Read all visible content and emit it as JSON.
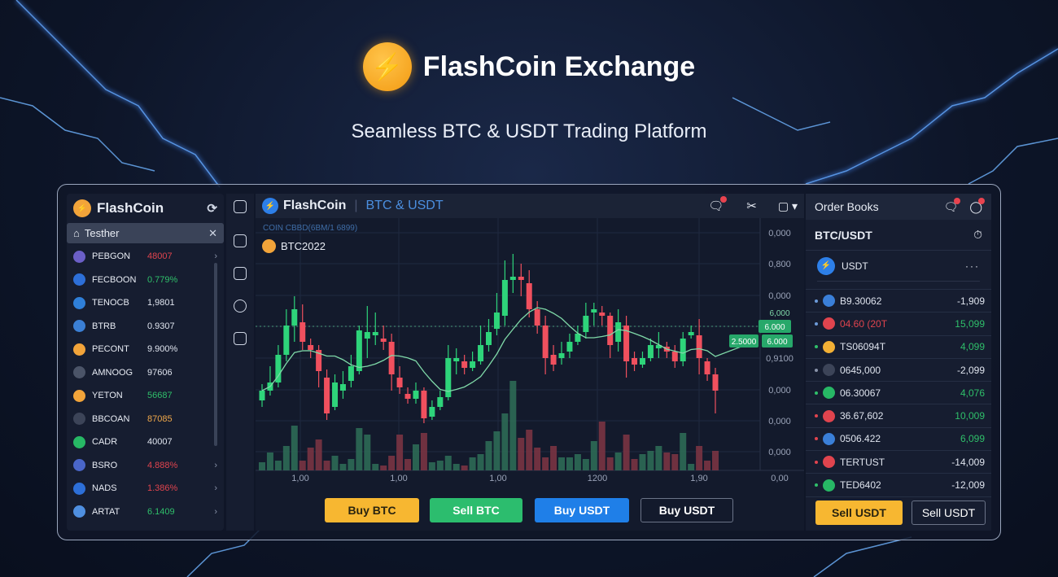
{
  "hero": {
    "brand": "FlashCoin Exchange",
    "subtitle": "Seamless BTC & USDT Trading Platform",
    "logo_icon": "lightning-bolt-icon"
  },
  "sidebar": {
    "title": "FlashCoin",
    "search_value": "Testher",
    "items": [
      {
        "name": "PEBGON",
        "value": "48007",
        "color": "#e0444e",
        "coin": "#6b5fc7"
      },
      {
        "name": "FECBOON",
        "value": "0.779%",
        "color": "#2fbf6a",
        "coin": "#2d6fd8"
      },
      {
        "name": "TENOCB",
        "value": "1,9801",
        "color": "#dfe4ee",
        "coin": "#2f7fd8"
      },
      {
        "name": "BTRB",
        "value": "0.9307",
        "color": "#dfe4ee",
        "coin": "#3b7fd4"
      },
      {
        "name": "PECONT",
        "value": "9.900%",
        "color": "#dfe4ee",
        "coin": "#f2a43a"
      },
      {
        "name": "AMNOOG",
        "value": "97606",
        "color": "#dfe4ee",
        "coin": "#4b5468"
      },
      {
        "name": "YETON",
        "value": "56687",
        "color": "#2fbf6a",
        "coin": "#f2a43a"
      },
      {
        "name": "BBCOAN",
        "value": "87085",
        "color": "#f0a84a",
        "coin": "#3c4458"
      },
      {
        "name": "CADR",
        "value": "40007",
        "color": "#dfe4ee",
        "coin": "#27b865"
      },
      {
        "name": "BSRO",
        "value": "4.888%",
        "color": "#e0444e",
        "coin": "#4a66c8"
      },
      {
        "name": "NADS",
        "value": "1.386%",
        "color": "#e0444e",
        "coin": "#2d6fd8"
      },
      {
        "name": "ARTAT",
        "value": "6.1409",
        "color": "#2fbf6a",
        "coin": "#4f8fe0"
      }
    ]
  },
  "chart": {
    "brand": "FlashCoin",
    "pair": "BTC & USDT",
    "info": "COIN CBBD(6BM/1 6899)",
    "symbol": "BTC2022",
    "y_ticks": [
      "0,000",
      "0,800",
      "0,000",
      "6,000",
      "0,9100",
      "0,000",
      "0,000",
      "0,000",
      "0,00"
    ],
    "x_ticks": [
      "1,00",
      "1,00",
      "1,00",
      "1200",
      "1,90"
    ],
    "tag_ma": "2.5000",
    "tag_price_1": "6.000",
    "tag_price_2": "6.000",
    "up_color": "#2ed47a",
    "down_color": "#f0505e",
    "ma_color": "#7fd9a8"
  },
  "chart_data": {
    "type": "candlestick",
    "note_scale": "relative",
    "candles": [
      [
        14,
        20,
        24,
        10
      ],
      [
        20,
        25,
        35,
        17
      ],
      [
        25,
        42,
        48,
        22
      ],
      [
        42,
        60,
        70,
        38
      ],
      [
        60,
        70,
        78,
        50
      ],
      [
        62,
        50,
        73,
        45
      ],
      [
        48,
        45,
        52,
        40
      ],
      [
        45,
        32,
        48,
        22
      ],
      [
        28,
        6,
        33,
        2
      ],
      [
        10,
        25,
        30,
        8
      ],
      [
        20,
        24,
        32,
        15
      ],
      [
        26,
        35,
        42,
        22
      ],
      [
        32,
        57,
        60,
        30
      ],
      [
        52,
        56,
        72,
        40
      ],
      [
        54,
        56,
        68,
        48
      ],
      [
        52,
        50,
        60,
        45
      ],
      [
        50,
        30,
        55,
        20
      ],
      [
        28,
        22,
        35,
        18
      ],
      [
        18,
        15,
        22,
        12
      ],
      [
        15,
        20,
        25,
        12
      ],
      [
        20,
        3,
        22,
        0
      ],
      [
        4,
        10,
        14,
        2
      ],
      [
        10,
        16,
        20,
        8
      ],
      [
        16,
        40,
        48,
        14
      ],
      [
        38,
        40,
        46,
        30
      ],
      [
        38,
        34,
        42,
        30
      ],
      [
        34,
        38,
        44,
        32
      ],
      [
        38,
        48,
        60,
        36
      ],
      [
        48,
        56,
        64,
        44
      ],
      [
        58,
        68,
        80,
        54
      ],
      [
        66,
        88,
        100,
        60
      ],
      [
        88,
        90,
        104,
        80
      ],
      [
        90,
        88,
        98,
        78
      ],
      [
        86,
        70,
        94,
        65
      ],
      [
        70,
        60,
        75,
        55
      ],
      [
        60,
        40,
        66,
        30
      ],
      [
        42,
        36,
        48,
        32
      ],
      [
        40,
        43,
        50,
        36
      ],
      [
        44,
        50,
        55,
        40
      ],
      [
        50,
        55,
        60,
        48
      ],
      [
        56,
        66,
        74,
        52
      ],
      [
        68,
        70,
        74,
        60
      ],
      [
        68,
        66,
        72,
        60
      ],
      [
        66,
        48,
        68,
        40
      ],
      [
        50,
        62,
        70,
        44
      ],
      [
        60,
        38,
        66,
        28
      ],
      [
        40,
        36,
        44,
        32
      ],
      [
        36,
        40,
        44,
        34
      ],
      [
        40,
        48,
        52,
        38
      ],
      [
        46,
        48,
        56,
        40
      ],
      [
        47,
        44,
        50,
        40
      ],
      [
        44,
        38,
        48,
        34
      ],
      [
        38,
        52,
        56,
        35
      ],
      [
        54,
        56,
        60,
        52
      ],
      [
        54,
        40,
        64,
        30
      ],
      [
        38,
        30,
        40,
        26
      ],
      [
        30,
        20,
        34,
        6
      ]
    ],
    "volume": [
      10,
      22,
      12,
      30,
      55,
      12,
      28,
      38,
      12,
      18,
      8,
      14,
      52,
      44,
      8,
      6,
      18,
      44,
      14,
      32,
      46,
      10,
      12,
      18,
      8,
      6,
      16,
      20,
      36,
      48,
      70,
      110,
      40,
      50,
      28,
      16,
      30,
      16,
      16,
      20,
      14,
      36,
      60,
      16,
      22,
      44,
      14,
      20,
      24,
      30,
      22,
      20,
      46,
      8,
      30,
      12,
      24
    ]
  },
  "actions": {
    "buy_btc": "Buy BTC",
    "sell_btc": "Sell BTC",
    "buy_usdt": "Buy USDT",
    "buy_usdt_outline": "Buy USDT"
  },
  "orderbook": {
    "title": "Order Books",
    "pair": "BTC/USDT",
    "asset": "USDT",
    "rows": [
      {
        "label": "B9.30062",
        "amount": "-1,909",
        "lc": "#dfe4ee",
        "ac": "#dfe4ee",
        "coin": "#3a7fd8",
        "dot": "#6c9ad8"
      },
      {
        "label": "04.60 (20T",
        "amount": "15,099",
        "lc": "#e0444e",
        "ac": "#2fbf6a",
        "coin": "#e0444e",
        "dot": "#6c9ad8"
      },
      {
        "label": "TS06094T",
        "amount": "4,099",
        "lc": "#dfe4ee",
        "ac": "#2fbf6a",
        "coin": "#f2b035",
        "dot": "#2fbf6a"
      },
      {
        "label": "0645,000",
        "amount": "-2,099",
        "lc": "#dfe4ee",
        "ac": "#dfe4ee",
        "coin": "#3c4458",
        "dot": "#8892a8"
      },
      {
        "label": "06.30067",
        "amount": "4,076",
        "lc": "#dfe4ee",
        "ac": "#2fbf6a",
        "coin": "#27b865",
        "dot": "#2fbf6a"
      },
      {
        "label": "36.67,602",
        "amount": "10,009",
        "lc": "#dfe4ee",
        "ac": "#2fbf6a",
        "coin": "#e0444e",
        "dot": "#e0444e"
      },
      {
        "label": "0506.422",
        "amount": "6,099",
        "lc": "#dfe4ee",
        "ac": "#2fbf6a",
        "coin": "#3a7fd8",
        "dot": "#e0444e"
      },
      {
        "label": "TERTUST",
        "amount": "-14,009",
        "lc": "#dfe4ee",
        "ac": "#dfe4ee",
        "coin": "#e0444e",
        "dot": "#e0444e"
      },
      {
        "label": "TED6402",
        "amount": "-12,009",
        "lc": "#dfe4ee",
        "ac": "#dfe4ee",
        "coin": "#27b865",
        "dot": "#2fbf6a"
      }
    ],
    "sell_primary": "Sell USDT",
    "sell_outline": "Sell USDT"
  }
}
